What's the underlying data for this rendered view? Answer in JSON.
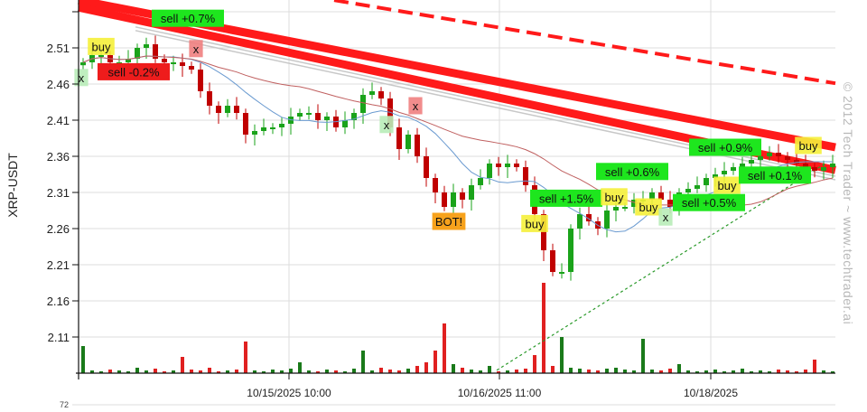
{
  "chart_data": {
    "type": "candlestick",
    "ylabel": "XRP-USDT",
    "watermark": "© 2012 Tech Trader ~ www.techtrader.ai",
    "lower_panel_tick": "72",
    "ylim": [
      2.06,
      2.576
    ],
    "y_ticks": [
      "2.11",
      "2.16",
      "2.21",
      "2.26",
      "2.31",
      "2.36",
      "2.41",
      "2.46",
      "2.51"
    ],
    "x_ticks": [
      {
        "index": 22.8,
        "label": "10/15/2025 10:00"
      },
      {
        "index": 46.1,
        "label": "10/16/2025 11:00"
      },
      {
        "index": 69.5,
        "label": "10/18/2025"
      }
    ],
    "grid": true,
    "colors": {
      "up": "#1aa31a",
      "down": "#c00000",
      "vol_up": "#1a7a1a",
      "vol_down": "#e02020",
      "ma_fast": "#6a9ad0",
      "ma_slow": "#c06060",
      "trend": "#ff1a1a",
      "channel": "#c8c8c8",
      "support": "#2a9a2a"
    },
    "close": [
      2.49,
      2.5,
      2.5,
      2.49,
      2.49,
      2.495,
      2.51,
      2.515,
      2.495,
      2.49,
      2.49,
      2.485,
      2.48,
      2.45,
      2.43,
      2.42,
      2.43,
      2.42,
      2.39,
      2.395,
      2.4,
      2.4,
      2.405,
      2.415,
      2.42,
      2.42,
      2.41,
      2.415,
      2.4,
      2.41,
      2.42,
      2.445,
      2.45,
      2.44,
      2.4,
      2.37,
      2.39,
      2.36,
      2.33,
      2.31,
      2.29,
      2.31,
      2.3,
      2.32,
      2.33,
      2.35,
      2.345,
      2.35,
      2.345,
      2.32,
      2.28,
      2.23,
      2.2,
      2.2,
      2.26,
      2.28,
      2.27,
      2.26,
      2.285,
      2.29,
      2.29,
      2.3,
      2.3,
      2.31,
      2.3,
      2.29,
      2.31,
      2.315,
      2.32,
      2.33,
      2.335,
      2.34,
      2.345,
      2.35,
      2.355,
      2.36,
      2.365,
      2.36,
      2.355,
      2.35,
      2.345,
      2.34,
      2.345,
      2.35
    ],
    "volume": [
      30,
      3,
      2,
      4,
      3,
      2,
      6,
      3,
      5,
      2,
      3,
      18,
      4,
      3,
      6,
      2,
      3,
      4,
      35,
      3,
      2,
      4,
      3,
      5,
      12,
      3,
      2,
      4,
      3,
      2,
      5,
      25,
      3,
      6,
      4,
      3,
      5,
      8,
      12,
      25,
      55,
      10,
      6,
      4,
      3,
      8,
      2,
      3,
      4,
      5,
      20,
      100,
      8,
      40,
      6,
      5,
      4,
      3,
      5,
      6,
      4,
      3,
      38,
      4,
      3,
      5,
      10,
      3,
      2,
      3,
      4,
      2,
      3,
      5,
      2,
      3,
      2,
      4,
      3,
      2,
      4,
      15,
      3,
      2
    ],
    "trendlines": [
      {
        "kind": "resistance-band",
        "from": [
          -0.5,
          2.576
        ],
        "to": [
          83.3,
          2.3725
        ]
      },
      {
        "kind": "resistance-band",
        "from": [
          -0.5,
          2.566
        ],
        "to": [
          83.3,
          2.341
        ]
      },
      {
        "kind": "resistance-dashed",
        "from": [
          27.8,
          2.576
        ],
        "to": [
          83.3,
          2.461
        ]
      },
      {
        "kind": "channel",
        "from": [
          5.8,
          2.539
        ],
        "to": [
          83.3,
          2.3325
        ]
      },
      {
        "kind": "support-dotted",
        "from": [
          45.8,
          2.064
        ],
        "to": [
          82.3,
          2.351
        ]
      }
    ],
    "annotations": [
      {
        "text": "x",
        "type": "cancel-green",
        "index": -0.2,
        "price": 2.469
      },
      {
        "text": "buy",
        "type": "buy",
        "index": 2,
        "price": 2.512
      },
      {
        "text": "sell -0.2%",
        "type": "sell-loss",
        "index": 5.6,
        "price": 2.477
      },
      {
        "text": "sell +0.7%",
        "type": "sell-profit",
        "index": 11.6,
        "price": 2.551
      },
      {
        "text": "x",
        "type": "cancel-red",
        "index": 12.5,
        "price": 2.509
      },
      {
        "text": "x",
        "type": "cancel-green",
        "index": 33.6,
        "price": 2.404
      },
      {
        "text": "x",
        "type": "cancel-red",
        "index": 36.8,
        "price": 2.43
      },
      {
        "text": "BOT!",
        "type": "bot",
        "index": 40.5,
        "price": 2.27
      },
      {
        "text": "buy",
        "type": "buy",
        "index": 50,
        "price": 2.267
      },
      {
        "text": "sell +1.5%",
        "type": "sell-profit",
        "index": 53.5,
        "price": 2.302
      },
      {
        "text": "buy",
        "type": "buy",
        "index": 58.8,
        "price": 2.304
      },
      {
        "text": "sell +0.6%",
        "type": "sell-profit",
        "index": 60.8,
        "price": 2.339
      },
      {
        "text": "buy",
        "type": "buy",
        "index": 62.6,
        "price": 2.29
      },
      {
        "text": "x",
        "type": "cancel-green",
        "index": 64.5,
        "price": 2.276
      },
      {
        "text": "sell +0.5%",
        "type": "sell-profit",
        "index": 69.3,
        "price": 2.296
      },
      {
        "text": "buy",
        "type": "buy",
        "index": 71.3,
        "price": 2.32
      },
      {
        "text": "sell +0.9%",
        "type": "sell-profit",
        "index": 71.1,
        "price": 2.3725
      },
      {
        "text": "sell +0.1%",
        "type": "sell-profit",
        "index": 76.6,
        "price": 2.334
      },
      {
        "text": "buy",
        "type": "buy",
        "index": 80.3,
        "price": 2.375
      }
    ]
  }
}
